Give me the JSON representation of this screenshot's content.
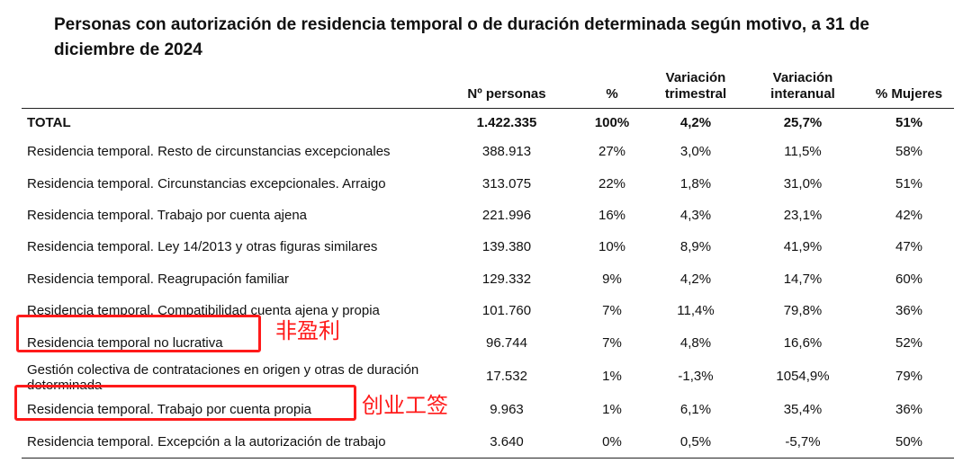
{
  "title": "Personas con autorización de residencia temporal o de duración determinada según motivo, a 31 de diciembre de 2024",
  "columns": {
    "personas": "Nº personas",
    "pct": "%",
    "var_trim": "Variación trimestral",
    "var_inter": "Variación interanual",
    "mujeres": "% Mujeres"
  },
  "total": {
    "label": "TOTAL",
    "personas": "1.422.335",
    "pct": "100%",
    "var_trim": "4,2%",
    "var_inter": "25,7%",
    "mujeres": "51%"
  },
  "rows": [
    {
      "label": "Residencia temporal. Resto de circunstancias excepcionales",
      "personas": "388.913",
      "pct": "27%",
      "var_trim": "3,0%",
      "var_inter": "11,5%",
      "mujeres": "58%"
    },
    {
      "label": "Residencia temporal. Circunstancias excepcionales. Arraigo",
      "personas": "313.075",
      "pct": "22%",
      "var_trim": "1,8%",
      "var_inter": "31,0%",
      "mujeres": "51%"
    },
    {
      "label": "Residencia temporal. Trabajo por cuenta ajena",
      "personas": "221.996",
      "pct": "16%",
      "var_trim": "4,3%",
      "var_inter": "23,1%",
      "mujeres": "42%"
    },
    {
      "label": "Residencia temporal. Ley 14/2013 y otras figuras similares",
      "personas": "139.380",
      "pct": "10%",
      "var_trim": "8,9%",
      "var_inter": "41,9%",
      "mujeres": "47%"
    },
    {
      "label": "Residencia temporal. Reagrupación familiar",
      "personas": "129.332",
      "pct": "9%",
      "var_trim": "4,2%",
      "var_inter": "14,7%",
      "mujeres": "60%"
    },
    {
      "label": "Residencia temporal. Compatibilidad cuenta ajena y propia",
      "personas": "101.760",
      "pct": "7%",
      "var_trim": "11,4%",
      "var_inter": "79,8%",
      "mujeres": "36%"
    },
    {
      "label": "Residencia temporal no lucrativa",
      "personas": "96.744",
      "pct": "7%",
      "var_trim": "4,8%",
      "var_inter": "16,6%",
      "mujeres": "52%"
    },
    {
      "label": "Gestión colectiva de contrataciones en origen y otras de duración determinada",
      "personas": "17.532",
      "pct": "1%",
      "var_trim": "-1,3%",
      "var_inter": "1054,9%",
      "mujeres": "79%"
    },
    {
      "label": "Residencia temporal. Trabajo por cuenta propia",
      "personas": "9.963",
      "pct": "1%",
      "var_trim": "6,1%",
      "var_inter": "35,4%",
      "mujeres": "36%"
    },
    {
      "label": "Residencia temporal. Excepción a la autorización de trabajo",
      "personas": "3.640",
      "pct": "0%",
      "var_trim": "0,5%",
      "var_inter": "-5,7%",
      "mujeres": "50%"
    }
  ],
  "annotations": {
    "non_lucrative": "非盈利",
    "self_employed": "创业工签"
  },
  "colors": {
    "annotation": "#ff1a1a",
    "negative": "#a4001c"
  }
}
